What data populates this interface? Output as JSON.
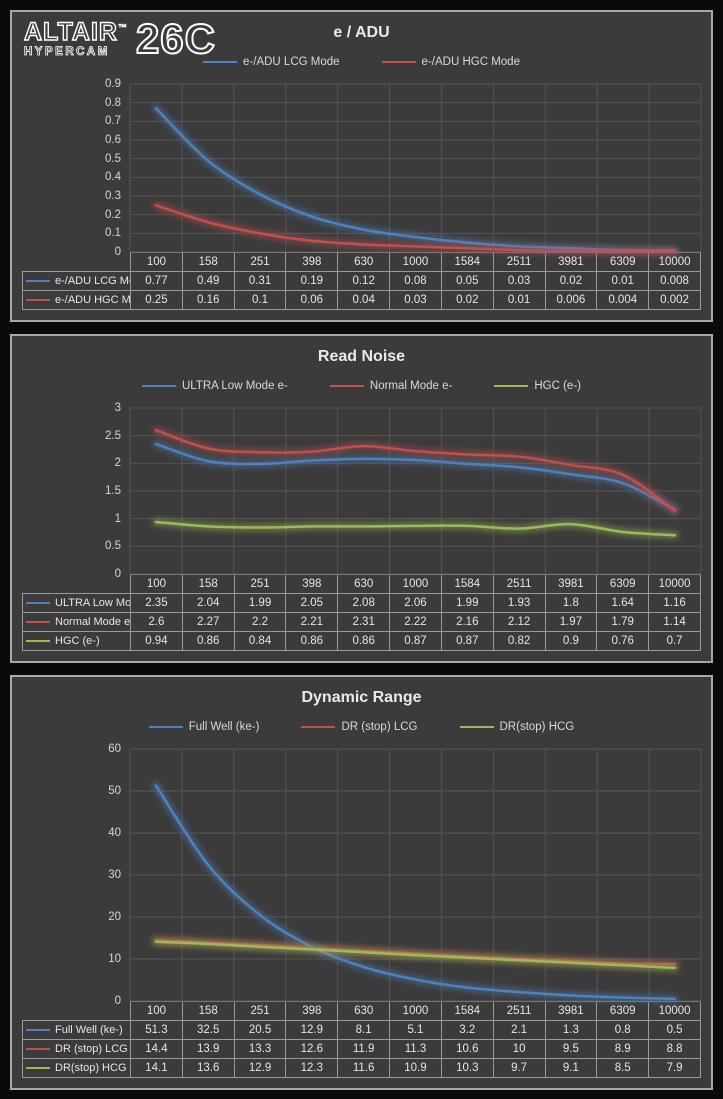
{
  "logo": {
    "brand": "ALTAIR",
    "trademark": "™",
    "sub_brand": "HYPERCAM",
    "model": "26C"
  },
  "colors": {
    "series_blue": "#4f81bd",
    "series_red": "#c0504d",
    "series_green": "#9bbb59",
    "panel_background": "#3b3b3b",
    "gridline": "#545454",
    "table_border": "#9a9a9a",
    "text": "#e6e6e6"
  },
  "chart_data": [
    {
      "type": "line",
      "title": "e / ADU",
      "grid": true,
      "legend_position": "top",
      "categories": [
        100,
        158,
        251,
        398,
        630,
        1000,
        1584,
        2511,
        3981,
        6309,
        10000
      ],
      "ylim": [
        0,
        0.9
      ],
      "yticks": [
        0.9,
        0.8,
        0.7,
        0.6,
        0.5,
        0.4,
        0.3,
        0.2,
        0.1,
        0
      ],
      "series": [
        {
          "name": "e-/ADU LCG Mode",
          "color": "#4f81bd",
          "values": [
            0.77,
            0.49,
            0.31,
            0.19,
            0.12,
            0.08,
            0.05,
            0.03,
            0.02,
            0.01,
            0.008
          ]
        },
        {
          "name": "e-/ADU HGC Mode",
          "color": "#c0504d",
          "values": [
            0.25,
            0.16,
            0.1,
            0.06,
            0.04,
            0.03,
            0.02,
            0.01,
            0.006,
            0.004,
            0.002
          ]
        }
      ]
    },
    {
      "type": "line",
      "title": "Read Noise",
      "grid": true,
      "legend_position": "top",
      "categories": [
        100,
        158,
        251,
        398,
        630,
        1000,
        1584,
        2511,
        3981,
        6309,
        10000
      ],
      "ylim": [
        0,
        3
      ],
      "yticks": [
        3,
        2.5,
        2,
        1.5,
        1,
        0.5,
        0
      ],
      "series": [
        {
          "name": "ULTRA Low Mode e-",
          "color": "#4f81bd",
          "values": [
            2.35,
            2.04,
            1.99,
            2.05,
            2.08,
            2.06,
            1.99,
            1.93,
            1.8,
            1.64,
            1.16
          ]
        },
        {
          "name": "Normal Mode e-",
          "color": "#c0504d",
          "values": [
            2.6,
            2.27,
            2.2,
            2.21,
            2.31,
            2.22,
            2.16,
            2.12,
            1.97,
            1.79,
            1.14
          ]
        },
        {
          "name": "HGC (e-)",
          "color": "#9bbb59",
          "values": [
            0.94,
            0.86,
            0.84,
            0.86,
            0.86,
            0.87,
            0.87,
            0.82,
            0.9,
            0.76,
            0.7
          ]
        }
      ]
    },
    {
      "type": "line",
      "title": "Dynamic Range",
      "grid": true,
      "legend_position": "top",
      "categories": [
        100,
        158,
        251,
        398,
        630,
        1000,
        1584,
        2511,
        3981,
        6309,
        10000
      ],
      "ylim": [
        0,
        60
      ],
      "yticks": [
        60,
        50,
        40,
        30,
        20,
        10,
        0
      ],
      "series": [
        {
          "name": "Full Well (ke-)",
          "color": "#4f81bd",
          "values": [
            51.3,
            32.5,
            20.5,
            12.9,
            8.1,
            5.1,
            3.2,
            2.1,
            1.3,
            0.8,
            0.5
          ]
        },
        {
          "name": "DR (stop) LCG",
          "color": "#c0504d",
          "values": [
            14.4,
            13.9,
            13.3,
            12.6,
            11.9,
            11.3,
            10.6,
            10,
            9.5,
            8.9,
            8.8
          ]
        },
        {
          "name": "DR(stop) HCG",
          "color": "#9bbb59",
          "values": [
            14.1,
            13.6,
            12.9,
            12.3,
            11.6,
            10.9,
            10.3,
            9.7,
            9.1,
            8.5,
            7.9
          ]
        }
      ]
    }
  ]
}
